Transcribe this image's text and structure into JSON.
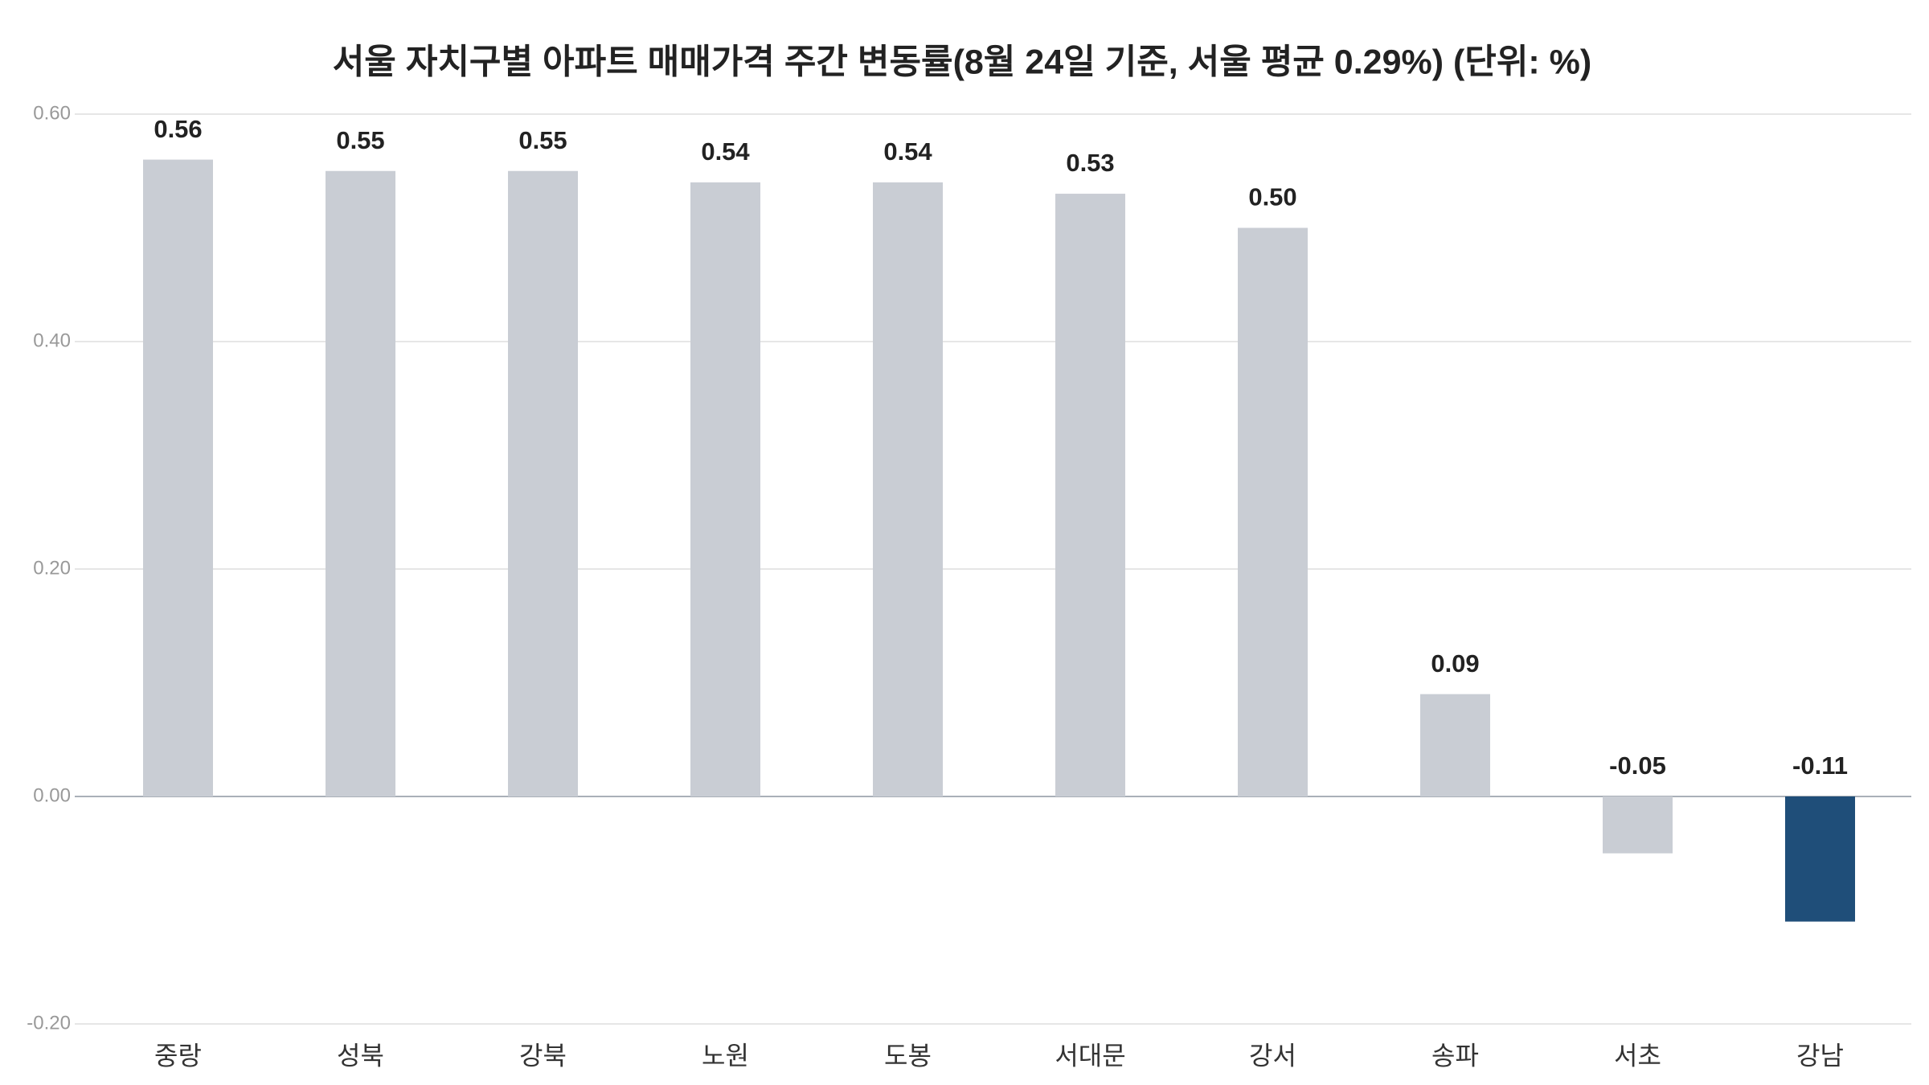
{
  "chart_data": {
    "type": "bar",
    "title": "서울 자치구별 아파트 매매가격 주간 변동률(8월 24일 기준, 서울 평균 0.29%) (단위: %)",
    "categories": [
      "중랑",
      "성북",
      "강북",
      "노원",
      "도봉",
      "서대문",
      "강서",
      "송파",
      "서초",
      "강남"
    ],
    "values": [
      0.56,
      0.55,
      0.55,
      0.54,
      0.54,
      0.53,
      0.5,
      0.09,
      -0.05,
      -0.11
    ],
    "value_labels": [
      "0.56",
      "0.55",
      "0.55",
      "0.54",
      "0.54",
      "0.53",
      "0.50",
      "0.09",
      "-0.05",
      "-0.11"
    ],
    "colors": [
      "#c9cdd4",
      "#c9cdd4",
      "#c9cdd4",
      "#c9cdd4",
      "#c9cdd4",
      "#c9cdd4",
      "#c9cdd4",
      "#c9cdd4",
      "#c9cdd4",
      "#1f4e79"
    ],
    "ylim": [
      -0.2,
      0.6
    ],
    "yticks": [
      {
        "value": -0.2,
        "label": "-0.20"
      },
      {
        "value": 0,
        "label": "0.00"
      },
      {
        "value": 0.2,
        "label": "0.20"
      },
      {
        "value": 0.4,
        "label": "0.40"
      },
      {
        "value": 0.6,
        "label": "0.60"
      }
    ],
    "grid": true
  }
}
